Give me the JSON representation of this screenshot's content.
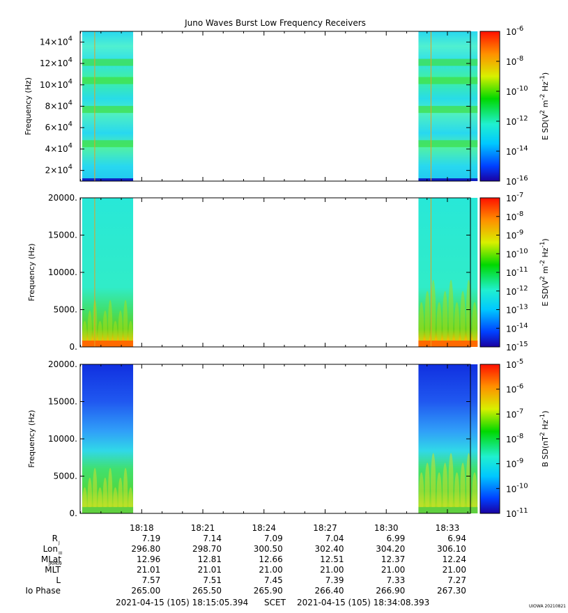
{
  "title": "Juno Waves Burst Low Frequency Receivers",
  "colors": {
    "low": "#0a0aa0",
    "mid1": "#1ea0ff",
    "mid2": "#22e0e0",
    "mid3": "#20e070",
    "mid4": "#20d020",
    "mid5": "#e0e020",
    "mid6": "#ff8000",
    "high": "#ff1010"
  },
  "chart_data": [
    {
      "type": "heatmap",
      "ylabel": "Frequency (Hz)",
      "ylim": [
        10000,
        150000
      ],
      "yticks": [
        {
          "v": 20000,
          "l": "2×10",
          "e": "4"
        },
        {
          "v": 40000,
          "l": "4×10",
          "e": "4"
        },
        {
          "v": 60000,
          "l": "6×10",
          "e": "4"
        },
        {
          "v": 80000,
          "l": "8×10",
          "e": "4"
        },
        {
          "v": 100000,
          "l": "10×10",
          "e": "4"
        },
        {
          "v": 120000,
          "l": "12×10",
          "e": "4"
        },
        {
          "v": 140000,
          "l": "14×10",
          "e": "4"
        }
      ],
      "colorbar": {
        "label": "E SD (V² m⁻² Hz⁻¹)",
        "label_parts": {
          "a": "E SD(V",
          "a_sup": "2",
          "b": " m",
          "b_sup": "-2",
          "c": " Hz",
          "c_sup": "-1",
          "d": ")"
        },
        "ticks": [
          {
            "b": "10",
            "e": "-6"
          },
          {
            "b": "10",
            "e": "-8"
          },
          {
            "b": "10",
            "e": "-10"
          },
          {
            "b": "10",
            "e": "-12"
          },
          {
            "b": "10",
            "e": "-14"
          },
          {
            "b": "10",
            "e": "-16"
          }
        ]
      },
      "data_intervals_min": [
        [
          0,
          2.5
        ],
        [
          16.5,
          19.4
        ]
      ],
      "bands_hz": [
        45000,
        77000,
        104000,
        121000
      ]
    },
    {
      "type": "heatmap",
      "ylabel": "Frequency (Hz)",
      "ylim": [
        0,
        20000
      ],
      "yticks": [
        {
          "v": 0,
          "l": "0."
        },
        {
          "v": 5000,
          "l": "5000."
        },
        {
          "v": 10000,
          "l": "10000."
        },
        {
          "v": 15000,
          "l": "15000."
        },
        {
          "v": 20000,
          "l": "20000."
        }
      ],
      "colorbar": {
        "label": "E SD (V² m⁻² Hz⁻¹)",
        "label_parts": {
          "a": "E SD(V",
          "a_sup": "2",
          "b": " m",
          "b_sup": "-2",
          "c": " Hz",
          "c_sup": "-1",
          "d": ")"
        },
        "ticks": [
          {
            "b": "10",
            "e": "-7"
          },
          {
            "b": "10",
            "e": "-8"
          },
          {
            "b": "10",
            "e": "-9"
          },
          {
            "b": "10",
            "e": "-10"
          },
          {
            "b": "10",
            "e": "-11"
          },
          {
            "b": "10",
            "e": "-12"
          },
          {
            "b": "10",
            "e": "-13"
          },
          {
            "b": "10",
            "e": "-14"
          },
          {
            "b": "10",
            "e": "-15"
          }
        ]
      },
      "data_intervals_min": [
        [
          0,
          2.5
        ],
        [
          16.5,
          19.4
        ]
      ]
    },
    {
      "type": "heatmap",
      "ylabel": "Frequency (Hz)",
      "ylim": [
        0,
        20000
      ],
      "yticks": [
        {
          "v": 0,
          "l": "0."
        },
        {
          "v": 5000,
          "l": "5000."
        },
        {
          "v": 10000,
          "l": "10000."
        },
        {
          "v": 15000,
          "l": "15000."
        },
        {
          "v": 20000,
          "l": "20000."
        }
      ],
      "colorbar": {
        "label": "B SD (nT² Hz⁻¹)",
        "label_parts": {
          "a": "B SD(nT",
          "a_sup": "2",
          "b": " Hz",
          "b_sup": "-1",
          "c": ")",
          "c_sup": "",
          "d": ""
        },
        "ticks": [
          {
            "b": "10",
            "e": "-5"
          },
          {
            "b": "10",
            "e": "-6"
          },
          {
            "b": "10",
            "e": "-7"
          },
          {
            "b": "10",
            "e": "-8"
          },
          {
            "b": "10",
            "e": "-9"
          },
          {
            "b": "10",
            "e": "-10"
          },
          {
            "b": "10",
            "e": "-11"
          }
        ]
      },
      "data_intervals_min": [
        [
          0,
          2.5
        ],
        [
          16.5,
          19.4
        ]
      ]
    }
  ],
  "xaxis": {
    "tick_labels": [
      "18:18",
      "18:21",
      "18:24",
      "18:27",
      "18:30",
      "18:33"
    ],
    "rows": [
      {
        "name": "R",
        "sub": "J",
        "values": [
          "7.19",
          "7.14",
          "7.09",
          "7.04",
          "6.99",
          "6.94"
        ]
      },
      {
        "name": "Lon",
        "sub": "III",
        "values": [
          "296.80",
          "298.70",
          "300.50",
          "302.40",
          "304.20",
          "306.10"
        ]
      },
      {
        "name": "MLat",
        "sub": "JRM09",
        "values": [
          "12.96",
          "12.81",
          "12.66",
          "12.51",
          "12.37",
          "12.24"
        ]
      },
      {
        "name": "MLT",
        "sub": "",
        "values": [
          "21.01",
          "21.01",
          "21.00",
          "21.00",
          "21.00",
          "21.00"
        ]
      },
      {
        "name": "L",
        "sub": "",
        "values": [
          "7.57",
          "7.51",
          "7.45",
          "7.39",
          "7.33",
          "7.27"
        ]
      },
      {
        "name": "Io Phase",
        "sub": "",
        "values": [
          "265.00",
          "265.50",
          "265.90",
          "266.40",
          "266.90",
          "267.30"
        ]
      }
    ],
    "footer_start": "2021-04-15 (105) 18:15:05.394",
    "footer_mid": "SCET",
    "footer_end": "2021-04-15 (105) 18:34:08.393"
  },
  "credit": "UIOWA 20210821"
}
